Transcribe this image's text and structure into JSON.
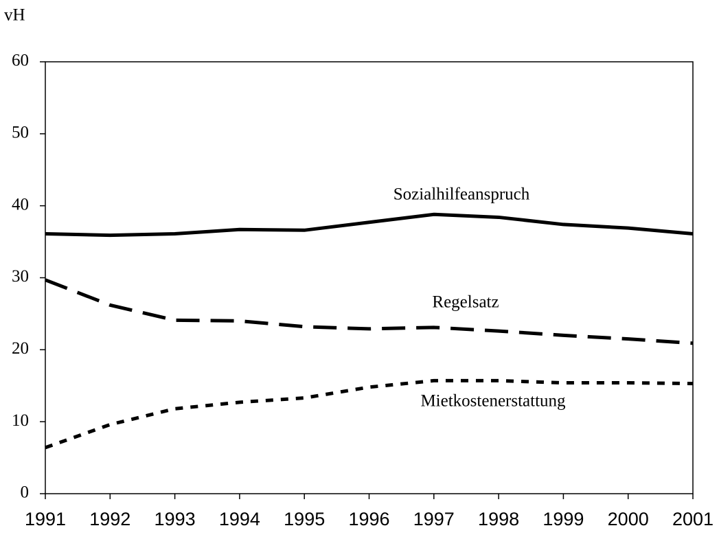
{
  "chart_data": {
    "type": "line",
    "ylabel": "vH",
    "x": [
      1991,
      1992,
      1993,
      1994,
      1995,
      1996,
      1997,
      1998,
      1999,
      2000,
      2001
    ],
    "xlim": [
      1991,
      2001
    ],
    "xticks": [
      1991,
      1992,
      1993,
      1994,
      1995,
      1996,
      1997,
      1998,
      1999,
      2000,
      2001
    ],
    "ylim": [
      0,
      60
    ],
    "yticks": [
      0,
      10,
      20,
      30,
      40,
      50,
      60
    ],
    "grid": false,
    "series": [
      {
        "name": "Sozialhilfeanspruch",
        "color": "#000000",
        "dash": "solid",
        "values": [
          36.1,
          35.9,
          36.1,
          36.7,
          36.6,
          37.7,
          38.8,
          38.4,
          37.4,
          36.9,
          36.1
        ]
      },
      {
        "name": "Regelsatz",
        "color": "#000000",
        "dash": "dashed",
        "values": [
          29.7,
          26.2,
          24.1,
          24.0,
          23.2,
          22.9,
          23.1,
          22.6,
          22.0,
          21.5,
          20.9
        ]
      },
      {
        "name": "Mietkostenerstattung",
        "color": "#000000",
        "dash": "dotted",
        "values": [
          6.4,
          9.6,
          11.8,
          12.7,
          13.3,
          14.8,
          15.7,
          15.7,
          15.4,
          15.4,
          15.3
        ]
      }
    ]
  }
}
